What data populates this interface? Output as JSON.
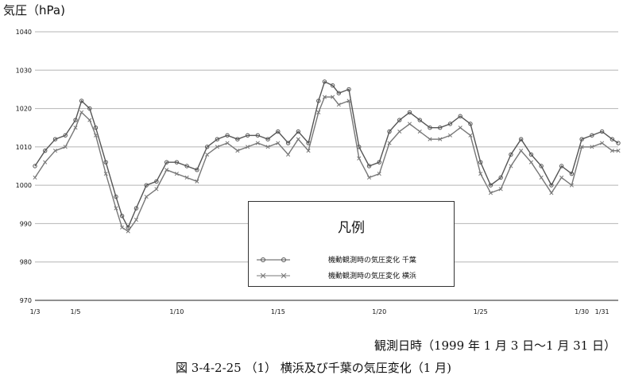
{
  "chart_data": {
    "type": "line",
    "ylabel": "気圧（hPa)",
    "xlabel": "観測日時（1999 年 1 月 3 日～1 月 31 日）",
    "caption": "図 3-4-2-25 （1） 横浜及び千葉の気圧変化（1 月)",
    "ylim": [
      970,
      1040
    ],
    "yticks": [
      970,
      980,
      990,
      1000,
      1010,
      1020,
      1030,
      1040
    ],
    "xlim": [
      3,
      31.8
    ],
    "xticks": [
      {
        "x": 3,
        "label": "1/3"
      },
      {
        "x": 5,
        "label": "1/5"
      },
      {
        "x": 10,
        "label": "1/10"
      },
      {
        "x": 15,
        "label": "1/15"
      },
      {
        "x": 20,
        "label": "1/20"
      },
      {
        "x": 25,
        "label": "1/25"
      },
      {
        "x": 30,
        "label": "1/30"
      },
      {
        "x": 31,
        "label": "1/31"
      }
    ],
    "grid": true,
    "legend": {
      "title": "凡例",
      "position": "center-bottom"
    },
    "series": [
      {
        "name": "機動観測時の気圧変化 千葉",
        "color": "#555555",
        "marker": "circle",
        "x": [
          3.0,
          3.5,
          4.0,
          4.5,
          5.0,
          5.3,
          5.7,
          6.0,
          6.5,
          7.0,
          7.3,
          7.6,
          8.0,
          8.5,
          9.0,
          9.5,
          10.0,
          10.5,
          11.0,
          11.5,
          12.0,
          12.5,
          13.0,
          13.5,
          14.0,
          14.5,
          15.0,
          15.5,
          16.0,
          16.5,
          17.0,
          17.3,
          17.7,
          18.0,
          18.5,
          19.0,
          19.5,
          20.0,
          20.5,
          21.0,
          21.5,
          22.0,
          22.5,
          23.0,
          23.5,
          24.0,
          24.5,
          25.0,
          25.5,
          26.0,
          26.5,
          27.0,
          27.5,
          28.0,
          28.5,
          29.0,
          29.5,
          30.0,
          30.5,
          31.0,
          31.5,
          31.8
        ],
        "y": [
          1005,
          1009,
          1012,
          1013,
          1017,
          1022,
          1020,
          1015,
          1006,
          997,
          992,
          989,
          994,
          1000,
          1001,
          1006,
          1006,
          1005,
          1004,
          1010,
          1012,
          1013,
          1012,
          1013,
          1013,
          1012,
          1014,
          1011,
          1014,
          1011,
          1022,
          1027,
          1026,
          1024,
          1025,
          1010,
          1005,
          1006,
          1014,
          1017,
          1019,
          1017,
          1015,
          1015,
          1016,
          1018,
          1016,
          1006,
          1000,
          1002,
          1008,
          1012,
          1008,
          1005,
          1000,
          1005,
          1003,
          1012,
          1013,
          1014,
          1012,
          1011
        ]
      },
      {
        "name": "機動観測時の気圧変化 横浜",
        "color": "#777777",
        "marker": "x",
        "x": [
          3.0,
          3.5,
          4.0,
          4.5,
          5.0,
          5.3,
          5.7,
          6.0,
          6.5,
          7.0,
          7.3,
          7.6,
          8.0,
          8.5,
          9.0,
          9.5,
          10.0,
          10.5,
          11.0,
          11.5,
          12.0,
          12.5,
          13.0,
          13.5,
          14.0,
          14.5,
          15.0,
          15.5,
          16.0,
          16.5,
          17.0,
          17.3,
          17.7,
          18.0,
          18.5,
          19.0,
          19.5,
          20.0,
          20.5,
          21.0,
          21.5,
          22.0,
          22.5,
          23.0,
          23.5,
          24.0,
          24.5,
          25.0,
          25.5,
          26.0,
          26.5,
          27.0,
          27.5,
          28.0,
          28.5,
          29.0,
          29.5,
          30.0,
          30.5,
          31.0,
          31.5,
          31.8
        ],
        "y": [
          1002,
          1006,
          1009,
          1010,
          1015,
          1019,
          1017,
          1013,
          1003,
          994,
          989,
          988,
          991,
          997,
          999,
          1004,
          1003,
          1002,
          1001,
          1008,
          1010,
          1011,
          1009,
          1010,
          1011,
          1010,
          1011,
          1008,
          1012,
          1009,
          1019,
          1023,
          1023,
          1021,
          1022,
          1007,
          1002,
          1003,
          1011,
          1014,
          1016,
          1014,
          1012,
          1012,
          1013,
          1015,
          1013,
          1003,
          998,
          999,
          1005,
          1009,
          1006,
          1002,
          998,
          1002,
          1000,
          1010,
          1010,
          1011,
          1009,
          1009
        ]
      }
    ]
  }
}
